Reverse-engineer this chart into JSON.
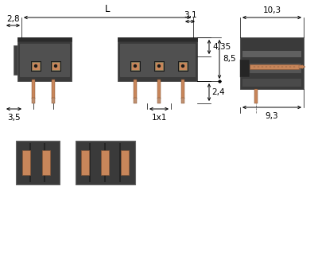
{
  "bg_color": "#ffffff",
  "dark_color": "#3a3a3a",
  "copper_color": "#c8865a",
  "copper_light": "#d4956a",
  "dim_color": "#000000",
  "line_color": "#000000",
  "font_size_dim": 7.5,
  "font_size_label": 8,
  "dims": {
    "L": "L",
    "d28": "2,8",
    "d31": "3,1",
    "d435": "4,35",
    "d85": "8,5",
    "d35": "3,5",
    "d1x1": "1x1",
    "d24": "2,4",
    "d103": "10,3",
    "d93": "9,3"
  }
}
